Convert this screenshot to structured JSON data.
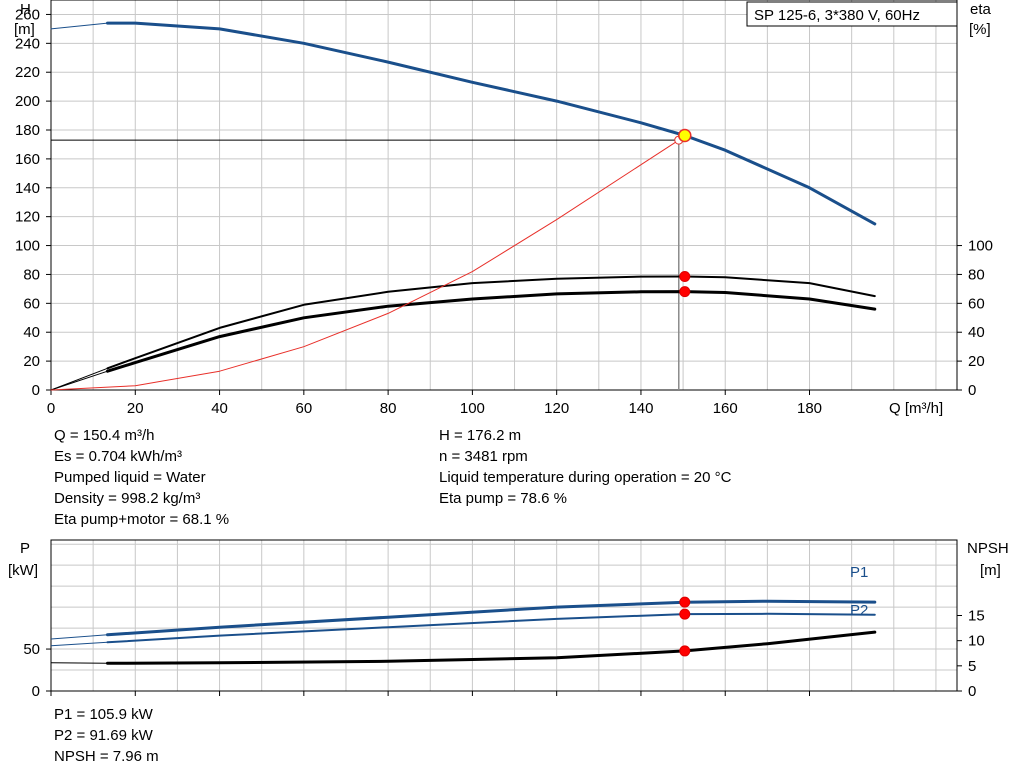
{
  "chart_data": [
    {
      "type": "line",
      "title": "SP 125-6, 3*380 V, 60Hz",
      "xlabel": "Q [m³/h]",
      "ylabel_left": [
        "H",
        "[m]"
      ],
      "ylabel_right": [
        "eta",
        "[%]"
      ],
      "xlim": [
        0,
        215
      ],
      "ylim_left": [
        0,
        270
      ],
      "ylim_right": [
        0,
        270
      ],
      "grid": true,
      "x_ticks": [
        0,
        20,
        40,
        60,
        80,
        100,
        120,
        140,
        160,
        180
      ],
      "y_ticks_left": [
        0,
        20,
        40,
        60,
        80,
        100,
        120,
        140,
        160,
        180,
        200,
        220,
        240,
        260
      ],
      "y_ticks_right": [
        0,
        20,
        40,
        60,
        80,
        100
      ],
      "series": [
        {
          "key": "H",
          "color": "#1a4f8b",
          "width": 3,
          "x": [
            13.4,
            20,
            40,
            60,
            80,
            100,
            120,
            140,
            150.4,
            160,
            180,
            195.5
          ],
          "y": [
            254,
            254,
            250,
            240,
            227,
            213,
            200,
            185,
            176.2,
            166,
            140,
            115
          ],
          "lead_x": [
            0,
            13.4
          ],
          "lead_y": [
            250,
            254
          ]
        },
        {
          "key": "eta_pump",
          "color": "#000000",
          "width": 2,
          "x": [
            13.4,
            20,
            40,
            60,
            80,
            100,
            120,
            140,
            150.4,
            160,
            180,
            195.5
          ],
          "y": [
            15,
            22,
            43,
            59,
            68,
            74,
            77,
            78.5,
            78.6,
            78,
            74,
            65
          ],
          "lead_x": [
            0,
            13.4
          ],
          "lead_y": [
            0,
            15
          ]
        },
        {
          "key": "eta_pump_motor",
          "color": "#000000",
          "width": 3,
          "x": [
            13.4,
            20,
            40,
            60,
            80,
            100,
            120,
            140,
            150.4,
            160,
            180,
            195.5
          ],
          "y": [
            13,
            19,
            37,
            50,
            58,
            63,
            66.5,
            68,
            68.1,
            67.5,
            63,
            56
          ],
          "lead_x": [
            0,
            13.4
          ],
          "lead_y": [
            0,
            13
          ]
        },
        {
          "key": "system_curve",
          "color": "#e8302a",
          "width": 1,
          "x": [
            0,
            20,
            40,
            60,
            80,
            100,
            120,
            140,
            149
          ],
          "y": [
            0,
            3,
            13,
            30,
            53,
            82,
            118,
            156,
            173
          ],
          "lead_x": [],
          "lead_y": []
        }
      ],
      "operating_point": {
        "Q": 150.4,
        "H": 176.2,
        "eta_pump": 78.6,
        "eta_total": 68.1,
        "hline_y": 173
      },
      "annotations": [
        [
          "Q = 150.4 m³/h",
          "Es = 0.704 kWh/m³",
          "Pumped liquid = Water",
          "Density = 998.2 kg/m³",
          "Eta pump+motor = 68.1 %"
        ],
        [
          "H = 176.2 m",
          "n = 3481 rpm",
          "Liquid temperature during operation = 20 °C",
          "Eta pump = 78.6 %"
        ]
      ]
    },
    {
      "type": "line",
      "title": "",
      "xlabel": "",
      "ylabel_left": [
        "P",
        "[kW]"
      ],
      "ylabel_right": [
        "NPSH",
        "[m]"
      ],
      "xlim": [
        0,
        215
      ],
      "ylim_left": [
        0,
        180
      ],
      "ylim_right": [
        0,
        30
      ],
      "grid": true,
      "y_ticks_left": [
        0,
        50
      ],
      "y_ticks_right": [
        0,
        5,
        10,
        15
      ],
      "series": [
        {
          "key": "P1",
          "name": "P1",
          "color": "#1a4f8b",
          "width": 3,
          "x": [
            13.4,
            40,
            80,
            120,
            150.4,
            170,
            195.5
          ],
          "y": [
            67,
            76,
            88,
            100,
            105.9,
            107,
            106
          ],
          "lead_x": [
            0,
            13.4
          ],
          "lead_y": [
            62,
            67
          ]
        },
        {
          "key": "P2",
          "name": "P2",
          "color": "#1a4f8b",
          "width": 2,
          "x": [
            13.4,
            40,
            80,
            120,
            150.4,
            170,
            195.5
          ],
          "y": [
            58,
            66,
            76,
            86,
            91.69,
            92,
            91
          ],
          "lead_x": [
            0,
            13.4
          ],
          "lead_y": [
            54,
            58
          ]
        },
        {
          "key": "NPSH",
          "color": "#000000",
          "width": 3,
          "axis": "right",
          "x": [
            13.4,
            40,
            80,
            120,
            150.4,
            170,
            195.5
          ],
          "y": [
            5.5,
            5.6,
            5.9,
            6.6,
            7.96,
            9.4,
            11.7
          ],
          "lead_x": [
            0,
            13.4
          ],
          "lead_y": [
            5.6,
            5.5
          ]
        }
      ],
      "operating_point": {
        "Q": 150.4,
        "P1": 105.9,
        "P2": 91.69,
        "NPSH": 7.96
      },
      "annotations": [
        [
          "P1 = 105.9 kW",
          "P2 = 91.69 kW",
          "NPSH = 7.96 m"
        ]
      ]
    }
  ]
}
